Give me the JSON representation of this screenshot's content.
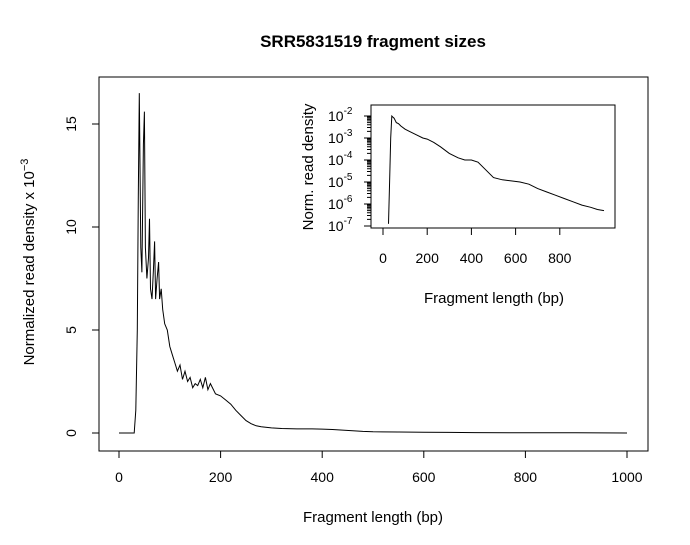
{
  "chart_data": [
    {
      "type": "line",
      "title": "SRR5831519 fragment sizes",
      "xlabel": "Fragment length (bp)",
      "ylabel_main": "Normalized read density x 10",
      "ylabel_exponent": "−3",
      "xlim": [
        0,
        1000
      ],
      "ylim": [
        0,
        16.5
      ],
      "xticks": [
        0,
        200,
        400,
        600,
        800,
        1000
      ],
      "yticks": [
        0,
        5,
        10,
        15
      ],
      "series": [
        {
          "x": [
            0,
            30,
            33,
            36,
            38,
            40,
            43,
            45,
            48,
            50,
            52,
            55,
            58,
            60,
            62,
            65,
            68,
            70,
            72,
            75,
            78,
            80,
            83,
            86,
            90,
            95,
            100,
            105,
            110,
            115,
            120,
            125,
            130,
            135,
            140,
            145,
            150,
            155,
            160,
            165,
            170,
            175,
            180,
            190,
            200,
            210,
            220,
            230,
            240,
            250,
            260,
            270,
            280,
            300,
            320,
            350,
            380,
            400,
            420,
            440,
            460,
            480,
            500,
            550,
            600,
            650,
            700,
            800,
            900,
            1000
          ],
          "y": [
            0,
            0,
            1.1,
            5.0,
            11.5,
            16.5,
            9.0,
            7.8,
            14.0,
            15.6,
            9.0,
            7.5,
            8.5,
            10.4,
            7.0,
            6.5,
            8.0,
            9.3,
            6.5,
            7.5,
            8.3,
            6.5,
            7.0,
            6.0,
            5.3,
            5.0,
            4.2,
            3.8,
            3.4,
            3.0,
            3.3,
            2.6,
            3.0,
            2.5,
            2.7,
            2.2,
            2.4,
            2.3,
            2.6,
            2.2,
            2.7,
            2.1,
            2.4,
            1.9,
            1.8,
            1.6,
            1.4,
            1.1,
            0.85,
            0.6,
            0.45,
            0.35,
            0.3,
            0.25,
            0.22,
            0.2,
            0.2,
            0.19,
            0.17,
            0.14,
            0.11,
            0.08,
            0.06,
            0.05,
            0.04,
            0.03,
            0.02,
            0.01,
            0.01,
            0.0
          ]
        }
      ]
    },
    {
      "type": "line",
      "title": "",
      "xlabel": "Fragment length (bp)",
      "ylabel": "Norm. read density",
      "log_y": true,
      "xlim": [
        0,
        1000
      ],
      "ylim_log10": [
        -7,
        -2
      ],
      "xticks": [
        0,
        200,
        400,
        600,
        800
      ],
      "yticks": [
        {
          "base": "10",
          "exp": "-2",
          "value": -2
        },
        {
          "base": "10",
          "exp": "-3",
          "value": -3
        },
        {
          "base": "10",
          "exp": "-4",
          "value": -4
        },
        {
          "base": "10",
          "exp": "-5",
          "value": -5
        },
        {
          "base": "10",
          "exp": "-6",
          "value": -6
        },
        {
          "base": "10",
          "exp": "-7",
          "value": -7
        }
      ],
      "series": [
        {
          "x": [
            25,
            30,
            35,
            40,
            45,
            50,
            60,
            70,
            80,
            100,
            120,
            150,
            180,
            200,
            230,
            260,
            300,
            340,
            370,
            400,
            430,
            460,
            500,
            540,
            580,
            620,
            660,
            700,
            740,
            780,
            820,
            860,
            900,
            940,
            970,
            1000
          ],
          "y_log10": [
            -6.9,
            -5.0,
            -3.0,
            -2.0,
            -2.05,
            -2.1,
            -2.3,
            -2.35,
            -2.45,
            -2.6,
            -2.7,
            -2.85,
            -3.0,
            -3.05,
            -3.2,
            -3.4,
            -3.7,
            -3.9,
            -4.0,
            -4.0,
            -4.1,
            -4.4,
            -4.8,
            -4.9,
            -4.95,
            -5.0,
            -5.1,
            -5.3,
            -5.45,
            -5.6,
            -5.75,
            -5.9,
            -6.05,
            -6.15,
            -6.25,
            -6.3
          ]
        }
      ]
    }
  ]
}
